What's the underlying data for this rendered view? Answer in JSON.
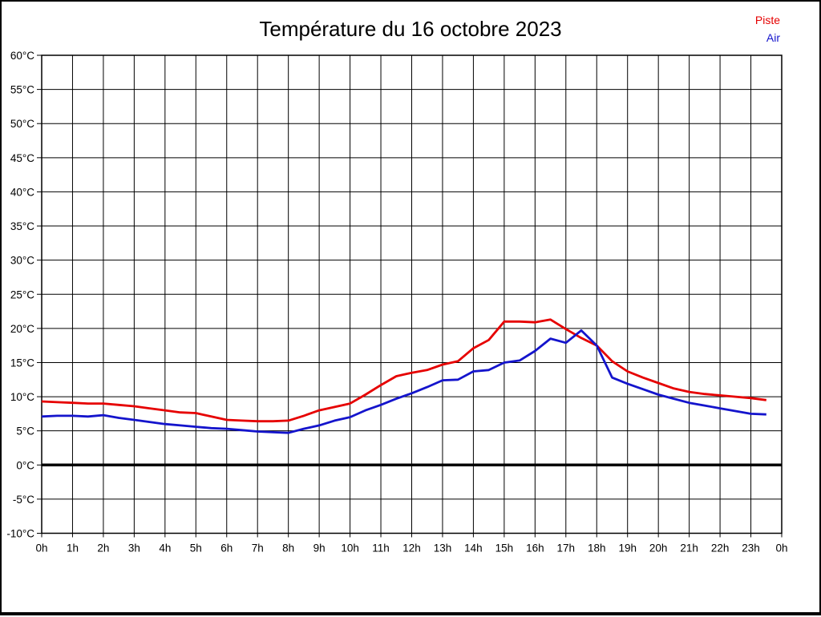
{
  "page": {
    "title": "Température du 16 octobre 2023"
  },
  "legend": {
    "items": [
      {
        "label": "Piste",
        "color": "#e60000"
      },
      {
        "label": "Air",
        "color": "#1414cc"
      }
    ]
  },
  "chart_data": {
    "type": "line",
    "title": "Température du 16 octobre 2023",
    "xlabel": "",
    "ylabel": "",
    "xlim": [
      0,
      24
    ],
    "ylim": [
      -10,
      60
    ],
    "y_step": 5,
    "grid": true,
    "zero_line": true,
    "legend_position": "top-right",
    "x_tick_labels": [
      "0h",
      "1h",
      "2h",
      "3h",
      "4h",
      "5h",
      "6h",
      "7h",
      "8h",
      "9h",
      "10h",
      "11h",
      "12h",
      "13h",
      "14h",
      "15h",
      "16h",
      "17h",
      "18h",
      "19h",
      "20h",
      "21h",
      "22h",
      "23h",
      "0h"
    ],
    "y_tick_labels": [
      "60°C",
      "55°C",
      "50°C",
      "45°C",
      "40°C",
      "35°C",
      "30°C",
      "25°C",
      "20°C",
      "15°C",
      "10°C",
      "5°C",
      "0°C",
      "-5°C",
      "-10°C"
    ],
    "x_hours": [
      0,
      0.5,
      1,
      1.5,
      2,
      2.5,
      3,
      3.5,
      4,
      4.5,
      5,
      5.5,
      6,
      6.5,
      7,
      7.5,
      8,
      8.5,
      9,
      9.5,
      10,
      10.5,
      11,
      11.5,
      12,
      12.5,
      13,
      13.5,
      14,
      14.5,
      15,
      15.5,
      16,
      16.5,
      17,
      17.5,
      18,
      18.5,
      19,
      19.5,
      20,
      20.5,
      21,
      21.5,
      22,
      22.5,
      23,
      23.5
    ],
    "series": [
      {
        "name": "Piste",
        "color": "#e60000",
        "values": [
          9.3,
          9.2,
          9.1,
          9.0,
          9.0,
          8.8,
          8.6,
          8.3,
          8.0,
          7.7,
          7.6,
          7.1,
          6.6,
          6.5,
          6.4,
          6.4,
          6.5,
          7.2,
          8.0,
          8.5,
          9.0,
          10.3,
          11.7,
          13.0,
          13.5,
          13.9,
          14.7,
          15.2,
          17.1,
          18.3,
          21.0,
          21.0,
          20.9,
          21.3,
          19.9,
          18.6,
          17.5,
          15.2,
          13.7,
          12.8,
          12.0,
          11.2,
          10.7,
          10.4,
          10.2,
          10.0,
          9.8,
          9.5
        ]
      },
      {
        "name": "Air",
        "color": "#1414cc",
        "values": [
          7.1,
          7.2,
          7.2,
          7.1,
          7.3,
          6.9,
          6.6,
          6.3,
          6.0,
          5.8,
          5.6,
          5.4,
          5.3,
          5.1,
          4.9,
          4.8,
          4.7,
          5.3,
          5.8,
          6.5,
          7.0,
          8.0,
          8.8,
          9.7,
          10.5,
          11.4,
          12.4,
          12.5,
          13.7,
          13.9,
          15.0,
          15.3,
          16.7,
          18.5,
          17.9,
          19.7,
          17.5,
          12.8,
          11.9,
          11.1,
          10.3,
          9.7,
          9.1,
          8.7,
          8.3,
          7.9,
          7.5,
          7.4
        ]
      }
    ]
  }
}
